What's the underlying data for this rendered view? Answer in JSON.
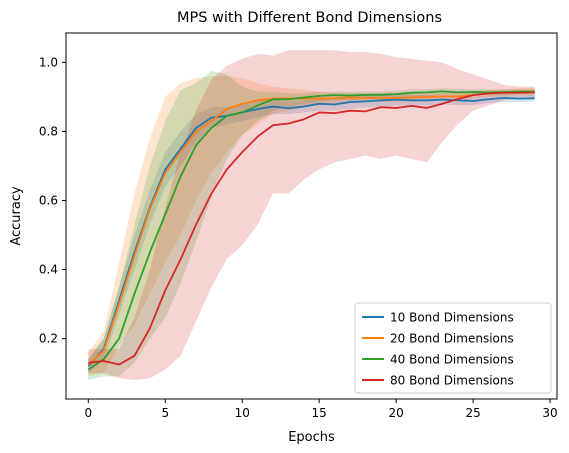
{
  "chart_data": {
    "type": "line",
    "title": "MPS with Different Bond Dimensions",
    "xlabel": "Epochs",
    "ylabel": "Accuracy",
    "xlim": [
      -1.45,
      30.45
    ],
    "ylim": [
      0.025,
      1.085
    ],
    "xticks": [
      0,
      5,
      10,
      15,
      20,
      25,
      30
    ],
    "yticks": [
      0.2,
      0.4,
      0.6,
      0.8,
      1.0
    ],
    "xtick_labels": [
      "0",
      "5",
      "10",
      "15",
      "20",
      "25",
      "30"
    ],
    "ytick_labels": [
      "0.2",
      "0.4",
      "0.6",
      "0.8",
      "1.0"
    ],
    "grid": false,
    "legend_position": "lower-right",
    "x": [
      0,
      1,
      2,
      3,
      4,
      5,
      6,
      7,
      8,
      9,
      10,
      11,
      12,
      13,
      14,
      15,
      16,
      17,
      18,
      19,
      20,
      21,
      22,
      23,
      24,
      25,
      26,
      27,
      28,
      29
    ],
    "series": [
      {
        "name": "10 Bond Dimensions",
        "color": "#1f77b4",
        "values": [
          0.12,
          0.17,
          0.31,
          0.45,
          0.58,
          0.69,
          0.75,
          0.81,
          0.84,
          0.845,
          0.855,
          0.865,
          0.872,
          0.867,
          0.872,
          0.88,
          0.878,
          0.885,
          0.887,
          0.89,
          0.892,
          0.89,
          0.89,
          0.892,
          0.89,
          0.888,
          0.893,
          0.897,
          0.895,
          0.896
        ],
        "lower": [
          0.1,
          0.14,
          0.27,
          0.4,
          0.53,
          0.64,
          0.7,
          0.77,
          0.81,
          0.82,
          0.83,
          0.84,
          0.85,
          0.85,
          0.855,
          0.86,
          0.86,
          0.865,
          0.87,
          0.87,
          0.875,
          0.875,
          0.875,
          0.878,
          0.876,
          0.876,
          0.882,
          0.886,
          0.885,
          0.886
        ],
        "upper": [
          0.14,
          0.2,
          0.35,
          0.5,
          0.63,
          0.74,
          0.8,
          0.85,
          0.87,
          0.87,
          0.88,
          0.89,
          0.894,
          0.886,
          0.89,
          0.9,
          0.896,
          0.905,
          0.905,
          0.91,
          0.91,
          0.905,
          0.905,
          0.906,
          0.904,
          0.9,
          0.904,
          0.908,
          0.905,
          0.906
        ]
      },
      {
        "name": "20 Bond Dimensions",
        "color": "#ff7f0e",
        "values": [
          0.125,
          0.165,
          0.3,
          0.44,
          0.575,
          0.68,
          0.74,
          0.8,
          0.83,
          0.865,
          0.88,
          0.89,
          0.895,
          0.896,
          0.895,
          0.895,
          0.896,
          0.898,
          0.897,
          0.897,
          0.897,
          0.898,
          0.9,
          0.901,
          0.901,
          0.905,
          0.91,
          0.912,
          0.915,
          0.916
        ],
        "lower": [
          0.09,
          0.1,
          0.18,
          0.24,
          0.33,
          0.42,
          0.5,
          0.6,
          0.68,
          0.74,
          0.79,
          0.82,
          0.85,
          0.86,
          0.87,
          0.875,
          0.88,
          0.885,
          0.885,
          0.885,
          0.885,
          0.887,
          0.89,
          0.89,
          0.89,
          0.895,
          0.9,
          0.902,
          0.905,
          0.905
        ],
        "upper": [
          0.16,
          0.22,
          0.42,
          0.62,
          0.78,
          0.9,
          0.94,
          0.955,
          0.96,
          0.96,
          0.955,
          0.94,
          0.93,
          0.925,
          0.92,
          0.915,
          0.912,
          0.912,
          0.91,
          0.91,
          0.91,
          0.91,
          0.91,
          0.912,
          0.912,
          0.915,
          0.92,
          0.922,
          0.925,
          0.926
        ]
      },
      {
        "name": "40 Bond Dimensions",
        "color": "#2ca02c",
        "values": [
          0.11,
          0.14,
          0.2,
          0.33,
          0.45,
          0.56,
          0.67,
          0.76,
          0.81,
          0.845,
          0.855,
          0.875,
          0.893,
          0.893,
          0.898,
          0.903,
          0.905,
          0.904,
          0.906,
          0.906,
          0.908,
          0.912,
          0.913,
          0.916,
          0.913,
          0.914,
          0.913,
          0.914,
          0.915,
          0.915
        ],
        "lower": [
          0.08,
          0.09,
          0.09,
          0.13,
          0.2,
          0.26,
          0.36,
          0.48,
          0.61,
          0.72,
          0.79,
          0.83,
          0.86,
          0.87,
          0.88,
          0.885,
          0.89,
          0.89,
          0.893,
          0.894,
          0.896,
          0.9,
          0.902,
          0.905,
          0.903,
          0.905,
          0.904,
          0.905,
          0.906,
          0.906
        ],
        "upper": [
          0.14,
          0.2,
          0.35,
          0.53,
          0.7,
          0.83,
          0.92,
          0.94,
          0.975,
          0.965,
          0.93,
          0.915,
          0.915,
          0.91,
          0.91,
          0.915,
          0.915,
          0.915,
          0.916,
          0.916,
          0.918,
          0.922,
          0.922,
          0.925,
          0.922,
          0.922,
          0.921,
          0.922,
          0.922,
          0.922
        ]
      },
      {
        "name": "80 Bond Dimensions",
        "color": "#d62728",
        "values": [
          0.13,
          0.135,
          0.125,
          0.15,
          0.23,
          0.34,
          0.43,
          0.53,
          0.62,
          0.69,
          0.74,
          0.785,
          0.818,
          0.823,
          0.835,
          0.855,
          0.853,
          0.86,
          0.858,
          0.87,
          0.868,
          0.874,
          0.868,
          0.88,
          0.894,
          0.905,
          0.91,
          0.912,
          0.912,
          0.913
        ],
        "lower": [
          0.1,
          0.1,
          0.085,
          0.08,
          0.085,
          0.11,
          0.15,
          0.25,
          0.35,
          0.43,
          0.47,
          0.53,
          0.62,
          0.62,
          0.66,
          0.69,
          0.71,
          0.72,
          0.73,
          0.72,
          0.73,
          0.72,
          0.71,
          0.77,
          0.82,
          0.86,
          0.875,
          0.89,
          0.895,
          0.896
        ],
        "upper": [
          0.17,
          0.17,
          0.17,
          0.26,
          0.4,
          0.58,
          0.74,
          0.86,
          0.95,
          0.99,
          1.01,
          1.025,
          1.02,
          1.035,
          1.035,
          1.035,
          1.035,
          1.03,
          1.03,
          1.025,
          1.015,
          1.01,
          1.005,
          1.0,
          0.98,
          0.965,
          0.95,
          0.935,
          0.93,
          0.93
        ]
      }
    ]
  }
}
